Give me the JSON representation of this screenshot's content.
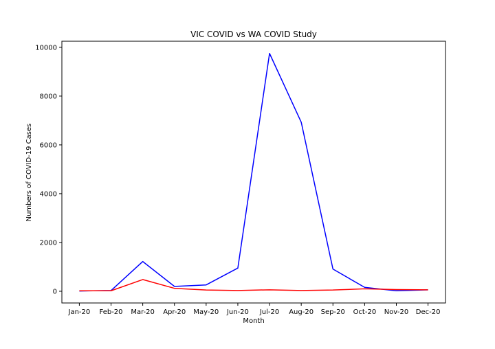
{
  "chart_data": {
    "type": "line",
    "title": "VIC COVID vs WA COVID Study",
    "xlabel": "Month",
    "ylabel": "Numbers of COVID-19 Cases",
    "categories": [
      "Jan-20",
      "Feb-20",
      "Mar-20",
      "Apr-20",
      "May-20",
      "Jun-20",
      "Jul-20",
      "Aug-20",
      "Sep-20",
      "Oct-20",
      "Nov-20",
      "Dec-20"
    ],
    "ylim": [
      -480,
      10250
    ],
    "yticks": [
      0,
      2000,
      4000,
      6000,
      8000,
      10000
    ],
    "grid": false,
    "legend": false,
    "series": [
      {
        "color": "#0000ff",
        "values": [
          10,
          30,
          1220,
          200,
          260,
          950,
          9750,
          6930,
          910,
          160,
          20,
          60
        ]
      },
      {
        "color": "#ff0000",
        "values": [
          20,
          20,
          480,
          120,
          50,
          30,
          60,
          30,
          50,
          100,
          70,
          60
        ]
      }
    ]
  }
}
